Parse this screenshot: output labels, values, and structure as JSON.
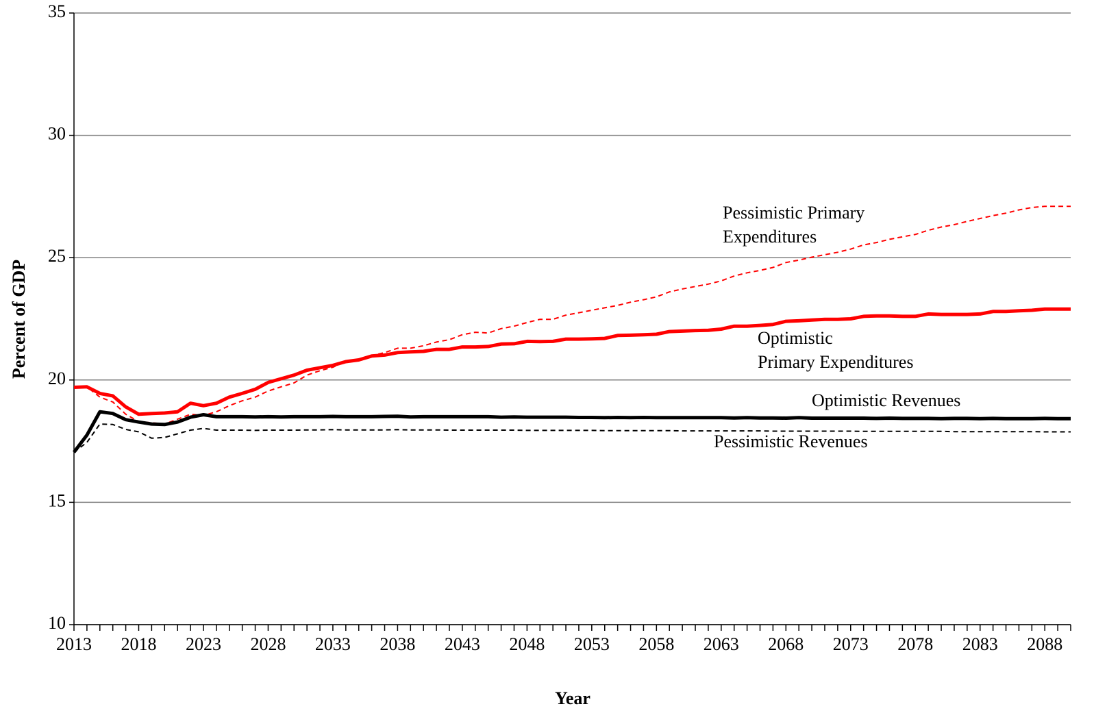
{
  "chart_data": {
    "type": "line",
    "xlabel": "Year",
    "ylabel": "Percent of GDP",
    "x": [
      2013,
      2014,
      2015,
      2016,
      2017,
      2018,
      2019,
      2020,
      2021,
      2022,
      2023,
      2024,
      2025,
      2026,
      2027,
      2028,
      2029,
      2030,
      2031,
      2032,
      2033,
      2034,
      2035,
      2036,
      2037,
      2038,
      2039,
      2040,
      2041,
      2042,
      2043,
      2044,
      2045,
      2046,
      2047,
      2048,
      2049,
      2050,
      2051,
      2052,
      2053,
      2054,
      2055,
      2056,
      2057,
      2058,
      2059,
      2060,
      2061,
      2062,
      2063,
      2064,
      2065,
      2066,
      2067,
      2068,
      2069,
      2070,
      2071,
      2072,
      2073,
      2074,
      2075,
      2076,
      2077,
      2078,
      2079,
      2080,
      2081,
      2082,
      2083,
      2084,
      2085,
      2086,
      2087,
      2088,
      2089,
      2090
    ],
    "series": [
      {
        "label": [
          "Pessimistic Primary",
          "Expenditures"
        ],
        "color": "#ff0000",
        "dashed": true,
        "width": 2,
        "values": [
          19.7,
          19.72,
          19.3,
          19.1,
          18.6,
          18.3,
          18.25,
          18.2,
          18.4,
          18.6,
          18.55,
          18.7,
          18.95,
          19.15,
          19.3,
          19.55,
          19.72,
          19.88,
          20.2,
          20.38,
          20.52,
          20.75,
          20.85,
          21.0,
          21.12,
          21.3,
          21.3,
          21.4,
          21.55,
          21.65,
          21.85,
          21.95,
          21.92,
          22.1,
          22.2,
          22.35,
          22.48,
          22.48,
          22.65,
          22.75,
          22.85,
          22.95,
          23.05,
          23.18,
          23.28,
          23.4,
          23.6,
          23.72,
          23.82,
          23.92,
          24.05,
          24.25,
          24.38,
          24.48,
          24.6,
          24.8,
          24.9,
          25.02,
          25.12,
          25.22,
          25.35,
          25.52,
          25.62,
          25.75,
          25.85,
          25.95,
          26.12,
          26.25,
          26.35,
          26.48,
          26.6,
          26.72,
          26.82,
          26.95,
          27.05,
          27.1,
          27.1,
          27.1
        ]
      },
      {
        "label": [
          "Optimistic",
          "Primary Expenditures"
        ],
        "color": "#ff0000",
        "dashed": false,
        "width": 5,
        "values": [
          19.7,
          19.72,
          19.45,
          19.35,
          18.9,
          18.6,
          18.63,
          18.65,
          18.7,
          19.05,
          18.95,
          19.05,
          19.3,
          19.45,
          19.62,
          19.9,
          20.05,
          20.2,
          20.4,
          20.5,
          20.6,
          20.75,
          20.82,
          20.98,
          21.02,
          21.12,
          21.15,
          21.17,
          21.25,
          21.25,
          21.35,
          21.35,
          21.37,
          21.47,
          21.48,
          21.58,
          21.57,
          21.58,
          21.67,
          21.67,
          21.68,
          21.7,
          21.82,
          21.83,
          21.85,
          21.87,
          21.98,
          22.0,
          22.02,
          22.03,
          22.08,
          22.2,
          22.2,
          22.23,
          22.27,
          22.4,
          22.42,
          22.45,
          22.48,
          22.48,
          22.5,
          22.6,
          22.62,
          22.62,
          22.6,
          22.6,
          22.7,
          22.68,
          22.68,
          22.68,
          22.7,
          22.8,
          22.8,
          22.83,
          22.85,
          22.9,
          22.9,
          22.9
        ]
      },
      {
        "label": [
          "Optimistic Revenues"
        ],
        "color": "#000000",
        "dashed": false,
        "width": 5,
        "values": [
          17.05,
          17.75,
          18.7,
          18.63,
          18.38,
          18.28,
          18.2,
          18.18,
          18.28,
          18.48,
          18.58,
          18.5,
          18.5,
          18.5,
          18.49,
          18.5,
          18.49,
          18.5,
          18.5,
          18.5,
          18.51,
          18.5,
          18.5,
          18.5,
          18.51,
          18.52,
          18.49,
          18.5,
          18.5,
          18.5,
          18.5,
          18.5,
          18.5,
          18.48,
          18.49,
          18.48,
          18.48,
          18.48,
          18.48,
          18.47,
          18.47,
          18.46,
          18.47,
          18.46,
          18.47,
          18.46,
          18.46,
          18.46,
          18.46,
          18.46,
          18.46,
          18.45,
          18.46,
          18.45,
          18.45,
          18.44,
          18.46,
          18.44,
          18.44,
          18.44,
          18.44,
          18.44,
          18.43,
          18.44,
          18.43,
          18.43,
          18.43,
          18.42,
          18.43,
          18.43,
          18.42,
          18.43,
          18.42,
          18.42,
          18.42,
          18.43,
          18.42,
          18.42
        ]
      },
      {
        "label": [
          "Pessimistic Revenues"
        ],
        "color": "#000000",
        "dashed": true,
        "width": 2,
        "values": [
          17.05,
          17.45,
          18.2,
          18.18,
          17.98,
          17.88,
          17.62,
          17.65,
          17.8,
          17.95,
          18.02,
          17.95,
          17.95,
          17.95,
          17.94,
          17.95,
          17.95,
          17.95,
          17.96,
          17.96,
          17.97,
          17.96,
          17.96,
          17.96,
          17.96,
          17.97,
          17.96,
          17.96,
          17.96,
          17.95,
          17.95,
          17.95,
          17.95,
          17.95,
          17.95,
          17.94,
          17.94,
          17.94,
          17.94,
          17.94,
          17.94,
          17.93,
          17.93,
          17.93,
          17.93,
          17.93,
          17.93,
          17.92,
          17.92,
          17.92,
          17.92,
          17.92,
          17.92,
          17.92,
          17.91,
          17.91,
          17.91,
          17.91,
          17.91,
          17.91,
          17.91,
          17.9,
          17.9,
          17.9,
          17.9,
          17.9,
          17.9,
          17.9,
          17.89,
          17.89,
          17.89,
          17.89,
          17.89,
          17.89,
          17.89,
          17.88,
          17.88,
          17.88
        ]
      }
    ],
    "xlim": [
      2013,
      2090
    ],
    "xticks": [
      2013,
      2018,
      2023,
      2028,
      2033,
      2038,
      2043,
      2048,
      2053,
      2058,
      2063,
      2068,
      2073,
      2078,
      2083,
      2088
    ],
    "ylim": [
      10,
      35
    ],
    "yticks": [
      10,
      15,
      20,
      25,
      30,
      35
    ],
    "grid": true
  }
}
